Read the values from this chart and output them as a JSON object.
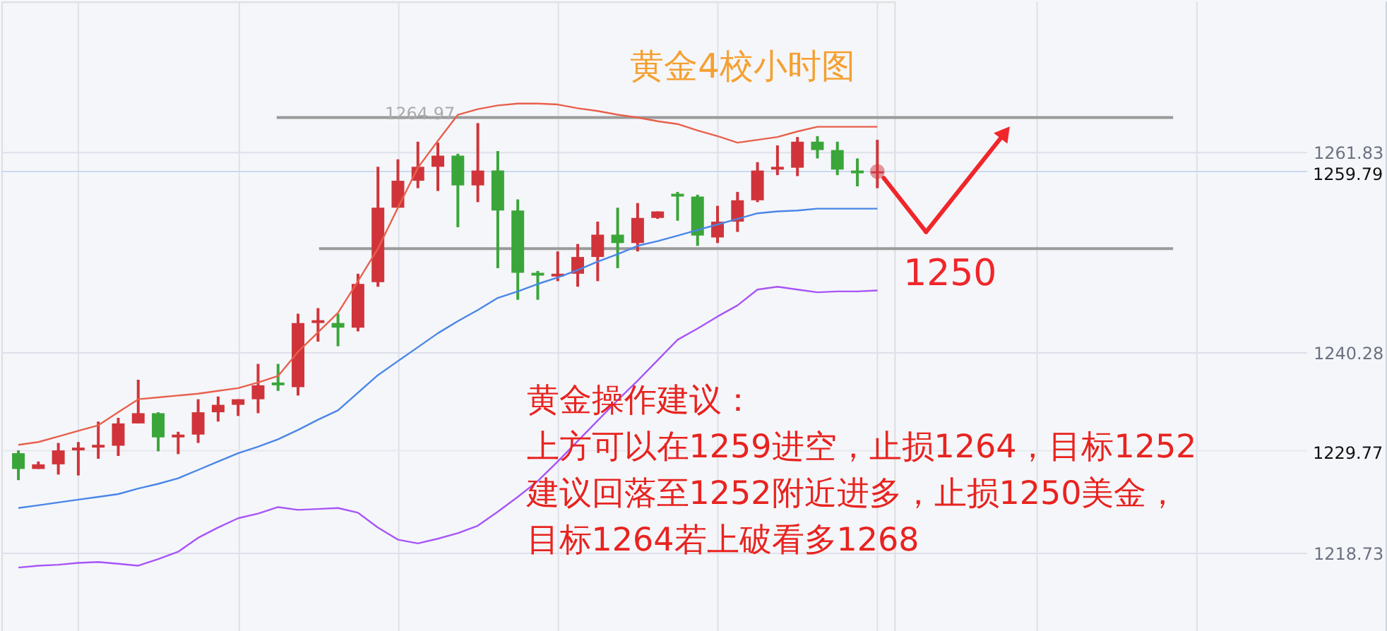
{
  "chart_data": {
    "type": "candlestick",
    "title": "黄金4校小时图",
    "categories": [
      null,
      null,
      null,
      null,
      null,
      null,
      null,
      null,
      null,
      null,
      null,
      null,
      null,
      null,
      null,
      null,
      null,
      null,
      null,
      null,
      null,
      null,
      null,
      null,
      null,
      null,
      null,
      null,
      null,
      null,
      null,
      null,
      null,
      null,
      null,
      null,
      null,
      null,
      null,
      null,
      null,
      null,
      null,
      null
    ],
    "ohlc": [
      [
        1229.5,
        1229.8,
        1226.6,
        1227.8
      ],
      [
        1227.8,
        1228.6,
        1227.8,
        1228.3
      ],
      [
        1228.3,
        1230.6,
        1227.2,
        1229.8
      ],
      [
        1229.8,
        1230.7,
        1227.1,
        1230.1
      ],
      [
        1230.1,
        1232.9,
        1228.9,
        1230.4
      ],
      [
        1230.3,
        1233.3,
        1229.2,
        1232.7
      ],
      [
        1232.7,
        1237.4,
        1232.7,
        1233.8
      ],
      [
        1233.8,
        1233.9,
        1229.7,
        1231.2
      ],
      [
        1231.2,
        1231.8,
        1229.4,
        1231.5
      ],
      [
        1231.5,
        1235.3,
        1230.6,
        1233.9
      ],
      [
        1233.9,
        1235.6,
        1232.9,
        1234.7
      ],
      [
        1234.7,
        1235.3,
        1233.5,
        1235.3
      ],
      [
        1235.3,
        1239.1,
        1233.8,
        1236.8
      ],
      [
        1237.1,
        1239.1,
        1236.2,
        1236.8
      ],
      [
        1236.6,
        1244.5,
        1235.7,
        1243.5
      ],
      [
        1243.5,
        1245.1,
        1241.5,
        1243.8
      ],
      [
        1243.5,
        1244.5,
        1241.0,
        1243.0
      ],
      [
        1243.0,
        1248.8,
        1242.6,
        1247.7
      ],
      [
        1247.9,
        1260.3,
        1247.4,
        1255.9
      ],
      [
        1255.9,
        1261.1,
        1255.9,
        1258.8
      ],
      [
        1258.8,
        1263.0,
        1258.0,
        1260.3
      ],
      [
        1260.3,
        1262.9,
        1257.7,
        1261.5
      ],
      [
        1261.5,
        1261.7,
        1253.8,
        1258.3
      ],
      [
        1258.3,
        1265.0,
        1256.5,
        1259.9
      ],
      [
        1259.9,
        1262.0,
        1249.4,
        1255.6
      ],
      [
        1255.6,
        1256.8,
        1246.0,
        1248.9
      ],
      [
        1248.9,
        1249.1,
        1246.0,
        1248.6
      ],
      [
        1248.5,
        1251.2,
        1248.0,
        1248.8
      ],
      [
        1248.8,
        1252.0,
        1247.4,
        1250.6
      ],
      [
        1250.6,
        1254.4,
        1248.0,
        1253.0
      ],
      [
        1253.0,
        1255.9,
        1249.4,
        1252.1
      ],
      [
        1252.1,
        1256.4,
        1251.2,
        1254.8
      ],
      [
        1254.8,
        1255.5,
        1254.7,
        1255.5
      ],
      [
        1257.4,
        1257.6,
        1254.5,
        1257.1
      ],
      [
        1257.1,
        1257.3,
        1251.8,
        1252.9
      ],
      [
        1252.7,
        1256.1,
        1252.1,
        1254.4
      ],
      [
        1254.4,
        1257.6,
        1253.3,
        1256.7
      ],
      [
        1256.7,
        1260.8,
        1256.5,
        1259.9
      ],
      [
        1260.0,
        1262.6,
        1259.4,
        1260.3
      ],
      [
        1260.2,
        1263.5,
        1259.3,
        1263.0
      ],
      [
        1263.0,
        1263.6,
        1261.2,
        1262.1
      ],
      [
        1262.1,
        1263.0,
        1259.4,
        1260.0
      ],
      [
        1259.9,
        1261.2,
        1258.2,
        1259.6
      ],
      [
        1259.6,
        1263.2,
        1258.0,
        1259.79
      ]
    ],
    "colors": [
      "#3aa63a",
      "#d0343a",
      "#d0343a",
      "#d0343a",
      "#d0343a",
      "#d0343a",
      "#d0343a",
      "#3aa63a",
      "#d0343a",
      "#d0343a",
      "#d0343a",
      "#d0343a",
      "#d0343a",
      "#3aa63a",
      "#d0343a",
      "#d0343a",
      "#3aa63a",
      "#d0343a",
      "#d0343a",
      "#d0343a",
      "#d0343a",
      "#d0343a",
      "#3aa63a",
      "#d0343a",
      "#3aa63a",
      "#3aa63a",
      "#3aa63a",
      "#d0343a",
      "#d0343a",
      "#d0343a",
      "#3aa63a",
      "#d0343a",
      "#d0343a",
      "#3aa63a",
      "#3aa63a",
      "#d0343a",
      "#d0343a",
      "#d0343a",
      "#d0343a",
      "#d0343a",
      "#3aa63a",
      "#3aa63a",
      "#3aa63a",
      "#d0343a"
    ],
    "series": [
      {
        "type": "line",
        "color": "#e8604c",
        "values": [
          1230.4,
          1230.7,
          1231.3,
          1231.9,
          1232.5,
          1233.9,
          1235.3,
          1235.5,
          1235.7,
          1235.9,
          1236.2,
          1236.5,
          1237.1,
          1237.8,
          1240.4,
          1242.5,
          1244.6,
          1248.0,
          1251.5,
          1255.9,
          1260.2,
          1263.1,
          1265.9,
          1266.5,
          1266.9,
          1267.1,
          1267.1,
          1267.0,
          1266.6,
          1266.3,
          1265.9,
          1265.6,
          1265.2,
          1264.9,
          1264.2,
          1263.6,
          1262.9,
          1263.2,
          1263.5,
          1264.1,
          1264.6,
          1264.6,
          1264.6,
          1264.6
        ]
      },
      {
        "type": "line",
        "color": "#4a86e8",
        "values": [
          1223.6,
          1223.9,
          1224.2,
          1224.5,
          1224.8,
          1225.1,
          1225.7,
          1226.2,
          1226.8,
          1227.7,
          1228.6,
          1229.5,
          1230.2,
          1231.0,
          1232.0,
          1233.1,
          1234.1,
          1236.0,
          1237.9,
          1239.4,
          1240.9,
          1242.4,
          1243.7,
          1244.9,
          1246.2,
          1246.9,
          1247.7,
          1248.4,
          1249.2,
          1250.1,
          1250.9,
          1251.8,
          1252.3,
          1252.9,
          1253.5,
          1254.1,
          1254.7,
          1255.3,
          1255.5,
          1255.6,
          1255.8,
          1255.8,
          1255.8,
          1255.8
        ]
      },
      {
        "type": "line",
        "color": "#a855f7",
        "values": [
          1217.2,
          1217.4,
          1217.5,
          1217.7,
          1217.8,
          1217.6,
          1217.4,
          1218.1,
          1218.9,
          1220.4,
          1221.5,
          1222.5,
          1223.0,
          1223.7,
          1223.4,
          1223.5,
          1223.6,
          1223.1,
          1221.5,
          1220.2,
          1219.8,
          1220.3,
          1220.9,
          1221.7,
          1223.2,
          1224.8,
          1226.5,
          1228.6,
          1230.8,
          1233.0,
          1235.2,
          1237.3,
          1239.5,
          1241.7,
          1242.9,
          1244.2,
          1245.4,
          1247.1,
          1247.4,
          1247.1,
          1246.8,
          1246.9,
          1246.9,
          1247.0
        ]
      }
    ],
    "ylim": [
      1210.24,
      1278.07
    ],
    "yticks": [
      1218.73,
      1240.28,
      1261.83
    ],
    "grid": true,
    "tick_labels": "y",
    "ref_lines": [
      {
        "axis": "y",
        "value": 1259.79,
        "label": "1259.79",
        "color": "#c9d9ef"
      },
      {
        "axis": "y",
        "value": 1229.77,
        "label": "1229.77",
        "color": "#e6e8ee"
      },
      {
        "axis": "y",
        "value": 1265.6,
        "color": "#9a9a9a"
      },
      {
        "axis": "y",
        "value": 1251.5,
        "color": "#9a9a9a"
      }
    ],
    "annotations": [
      {
        "text": "1264.97",
        "y": 1264.97
      },
      "1250",
      "黄金操作建议：",
      "上方可以在1259进空，止损1264，目标1252",
      "建议回落至1252附近进多，止损1250美金，",
      "目标1264若上破看多1268"
    ]
  }
}
